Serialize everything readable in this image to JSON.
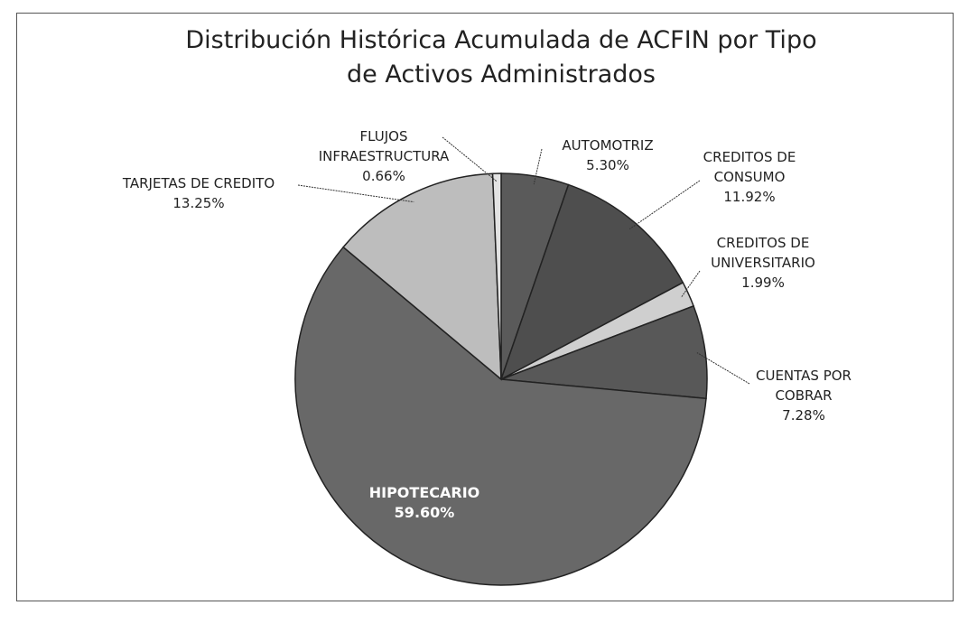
{
  "chart_data": {
    "type": "pie",
    "title": "Distribución Histórica Acumulada de ACFIN por Tipo de Activos Administrados",
    "categories": [
      "AUTOMOTRIZ",
      "CREDITOS DE CONSUMO",
      "CREDITOS DE UNIVERSITARIO",
      "CUENTAS POR COBRAR",
      "HIPOTECARIO",
      "TARJETAS DE CREDITO",
      "FLUJOS INFRAESTRUCTURA"
    ],
    "values": [
      5.3,
      11.92,
      1.99,
      7.28,
      59.6,
      13.25,
      0.66
    ],
    "value_labels": [
      "5.30%",
      "11.92%",
      "1.99%",
      "7.28%",
      "59.60%",
      "13.25%",
      "0.66%"
    ],
    "colors": [
      "#5a5a5a",
      "#4e4e4e",
      "#cfcfcf",
      "#585858",
      "#686868",
      "#bdbdbd",
      "#e2e2e2"
    ]
  }
}
